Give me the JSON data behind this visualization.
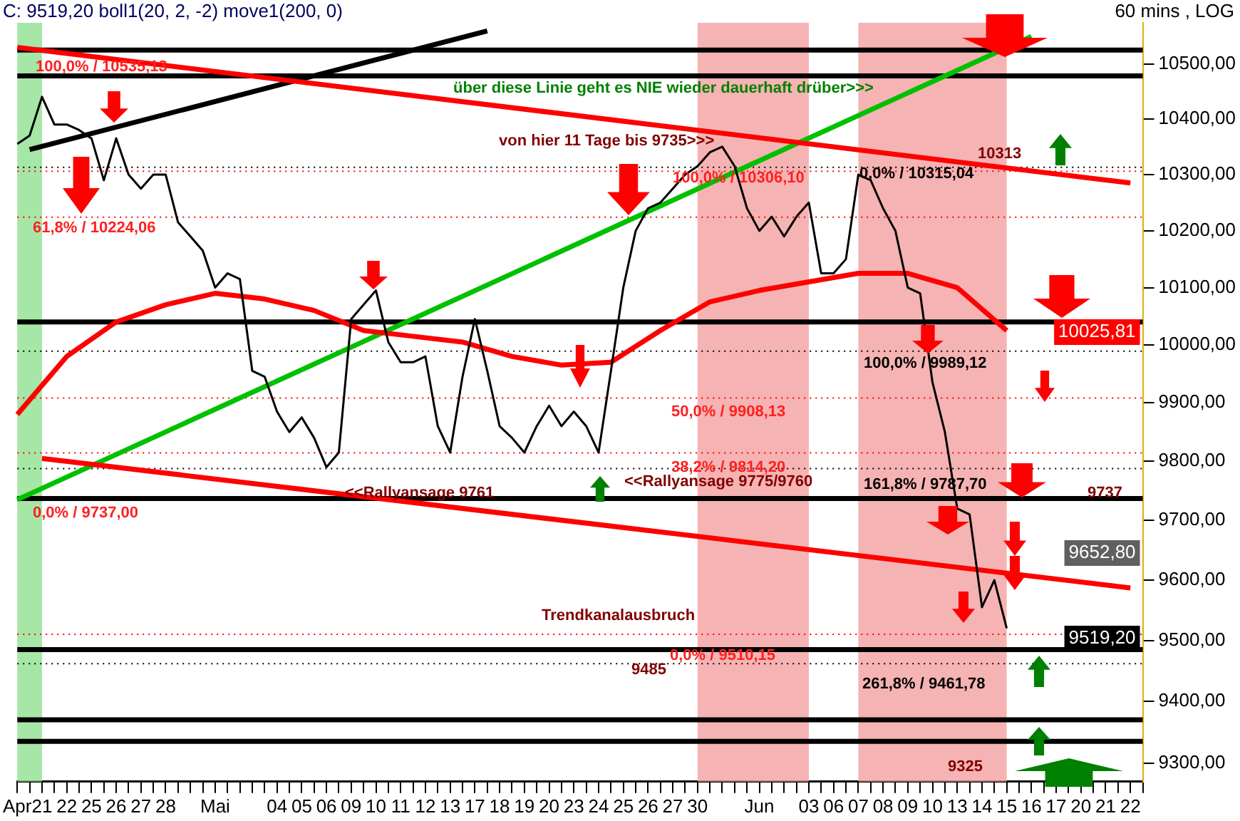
{
  "chart_data": {
    "type": "line",
    "title": "C: 9519,20 boll1(20, 2, -2) move1(200, 0)",
    "subtitle": "60 mins , LOG",
    "categories": [
      "Apr",
      null,
      "21",
      null,
      "22",
      null,
      "25",
      null,
      "26",
      null,
      "27",
      null,
      "28",
      null,
      null,
      null,
      "Mai",
      null,
      null,
      null,
      null,
      "04",
      null,
      "05",
      null,
      "06",
      null,
      "09",
      null,
      "10",
      null,
      "11",
      null,
      "12",
      null,
      "13",
      null,
      "17",
      null,
      "18",
      null,
      "19",
      null,
      "20",
      null,
      "23",
      null,
      "24",
      null,
      "25",
      null,
      "26",
      null,
      "27",
      null,
      "30",
      null,
      null,
      null,
      null,
      "Jun",
      null,
      null,
      null,
      "03",
      null,
      "06",
      null,
      "07",
      null,
      "08",
      null,
      "09",
      null,
      "10",
      null,
      "13",
      null,
      "14",
      null,
      "15",
      null,
      "16",
      null,
      "17",
      null,
      "20",
      null,
      "21",
      null,
      "22",
      null
    ],
    "series": [
      {
        "type": "line",
        "color": "#000000",
        "values": [
          10355,
          10370,
          10440,
          10390,
          10390,
          10380,
          10365,
          10290,
          10365,
          10300,
          10275,
          10300,
          10300,
          10215,
          10190,
          10165,
          10100,
          10125,
          10115,
          9955,
          9945,
          9885,
          9850,
          9875,
          9840,
          9790,
          9815,
          10045,
          10070,
          10095,
          10005,
          9970,
          9970,
          9980,
          9860,
          9815,
          9945,
          10045,
          9955,
          9860,
          9840,
          9815,
          9860,
          9895,
          9860,
          9885,
          9860,
          9815,
          9955,
          10100,
          10200,
          10240,
          10250,
          10275,
          10300,
          10315,
          10340,
          10350,
          10315,
          10240,
          10200,
          10225,
          10190,
          10225,
          10250,
          10125,
          10125,
          10150,
          10300,
          10290,
          10240,
          10200,
          10100,
          10090,
          9935,
          9850,
          9720,
          9710,
          9555,
          9600,
          9520,
          null,
          null,
          null,
          null,
          null,
          null,
          null,
          null,
          null,
          null,
          null
        ]
      },
      {
        "type": "line",
        "color": "#ff0000",
        "values": [
          9880,
          null,
          null,
          null,
          9980,
          null,
          null,
          null,
          10040,
          null,
          null,
          null,
          10070,
          null,
          null,
          null,
          10090,
          null,
          null,
          null,
          10080,
          null,
          null,
          null,
          10060,
          null,
          null,
          null,
          10025,
          null,
          null,
          null,
          10015,
          null,
          null,
          null,
          10005,
          null,
          null,
          null,
          9980,
          null,
          null,
          null,
          9965,
          null,
          null,
          null,
          9970,
          null,
          null,
          null,
          10025,
          null,
          null,
          null,
          10075,
          null,
          null,
          null,
          10095,
          null,
          null,
          null,
          10110,
          null,
          null,
          null,
          10125,
          null,
          null,
          null,
          10125,
          null,
          null,
          null,
          10100,
          null,
          null,
          null,
          10025,
          null,
          null,
          null,
          null,
          null,
          null,
          null,
          null,
          null,
          null,
          null
        ]
      },
      {
        "type": "line",
        "color": "#ff0000",
        "values": [
          10530,
          null,
          null,
          null,
          null,
          null,
          null,
          null,
          null,
          null,
          null,
          null,
          null,
          null,
          null,
          null,
          null,
          null,
          null,
          null,
          null,
          null,
          null,
          null,
          null,
          null,
          null,
          null,
          null,
          null,
          null,
          null,
          null,
          null,
          null,
          null,
          null,
          null,
          null,
          null,
          null,
          null,
          null,
          null,
          null,
          null,
          null,
          null,
          null,
          null,
          null,
          null,
          null,
          null,
          null,
          null,
          null,
          null,
          null,
          null,
          null,
          null,
          null,
          null,
          null,
          null,
          null,
          null,
          null,
          null,
          null,
          null,
          null,
          null,
          null,
          null,
          null,
          null,
          null,
          null,
          null,
          null,
          null,
          null,
          null,
          null,
          null,
          null,
          null,
          null,
          10285,
          null
        ]
      },
      {
        "type": "line",
        "color": "#ff0000",
        "values": [
          null,
          null,
          9805,
          null,
          null,
          null,
          null,
          null,
          null,
          null,
          null,
          null,
          null,
          null,
          null,
          null,
          null,
          null,
          null,
          null,
          null,
          null,
          null,
          null,
          null,
          null,
          null,
          null,
          null,
          null,
          null,
          null,
          null,
          null,
          null,
          null,
          null,
          null,
          null,
          null,
          null,
          null,
          null,
          null,
          null,
          null,
          null,
          null,
          null,
          null,
          null,
          null,
          null,
          null,
          null,
          null,
          null,
          null,
          null,
          null,
          null,
          null,
          null,
          null,
          null,
          null,
          null,
          null,
          null,
          null,
          null,
          null,
          null,
          null,
          null,
          null,
          null,
          null,
          null,
          null,
          null,
          null,
          null,
          null,
          null,
          null,
          null,
          null,
          null,
          null,
          9587,
          null
        ]
      },
      {
        "type": "line",
        "color": "#00c000",
        "values": [
          9735,
          null,
          null,
          null,
          null,
          null,
          null,
          null,
          null,
          null,
          null,
          null,
          null,
          null,
          null,
          null,
          null,
          null,
          null,
          null,
          null,
          null,
          null,
          null,
          null,
          null,
          null,
          null,
          null,
          null,
          null,
          null,
          null,
          null,
          null,
          null,
          null,
          null,
          null,
          null,
          null,
          null,
          null,
          null,
          null,
          null,
          null,
          null,
          null,
          null,
          null,
          null,
          null,
          null,
          null,
          null,
          null,
          null,
          null,
          null,
          null,
          null,
          null,
          null,
          null,
          null,
          null,
          null,
          null,
          null,
          null,
          null,
          null,
          null,
          null,
          null,
          null,
          null,
          null,
          null,
          null,
          null,
          10550,
          null,
          null,
          null,
          null,
          null,
          null,
          null,
          null,
          null
        ]
      },
      {
        "type": "line",
        "color": "#000000",
        "values": [
          null,
          10345,
          null,
          null,
          null,
          null,
          null,
          null,
          null,
          null,
          null,
          null,
          null,
          null,
          null,
          null,
          null,
          null,
          null,
          null,
          null,
          null,
          null,
          null,
          null,
          null,
          null,
          null,
          null,
          null,
          null,
          null,
          null,
          null,
          null,
          null,
          null,
          null,
          10560,
          null,
          null,
          null,
          null,
          null,
          null,
          null,
          null,
          null,
          null,
          null,
          null,
          null,
          null,
          null,
          null,
          null,
          null,
          null,
          null,
          null,
          null,
          null,
          null,
          null,
          null,
          null,
          null,
          null,
          null,
          null,
          null,
          null,
          null,
          null,
          null,
          null,
          null,
          null,
          null,
          null,
          null,
          null,
          null,
          null,
          null,
          null,
          null,
          null,
          null,
          null,
          null,
          null
        ]
      }
    ],
    "log": true,
    "ylim": [
      9270,
      10575
    ],
    "yticks": [
      {
        "value": 9300,
        "label": "9300,00"
      },
      {
        "value": 9400,
        "label": "9400,00"
      },
      {
        "value": 9500,
        "label": "9500,00"
      },
      {
        "value": 9600,
        "label": "9600,00"
      },
      {
        "value": 9700,
        "label": "9700,00"
      },
      {
        "value": 9800,
        "label": "9800,00"
      },
      {
        "value": 9900,
        "label": "9900,00"
      },
      {
        "value": 10000,
        "label": "10000,00"
      },
      {
        "value": 10100,
        "label": "10100,00"
      },
      {
        "value": 10200,
        "label": "10200,00"
      },
      {
        "value": 10300,
        "label": "10300,00"
      },
      {
        "value": 10400,
        "label": "10400,00"
      },
      {
        "value": 10500,
        "label": "10500,00"
      }
    ],
    "grid": false,
    "legend": false,
    "marker": "none",
    "ref_lines": [
      {
        "axis": "y",
        "value": 10525,
        "color": "#000000",
        "line_style": "solid"
      },
      {
        "axis": "y",
        "value": 10478,
        "color": "#000000",
        "line_style": "solid"
      },
      {
        "axis": "y",
        "value": 10040,
        "color": "#000000",
        "line_style": "solid"
      },
      {
        "axis": "y",
        "value": 9737,
        "color": "#000000",
        "line_style": "solid"
      },
      {
        "axis": "y",
        "value": 9485,
        "color": "#000000",
        "line_style": "solid"
      },
      {
        "axis": "y",
        "value": 9370,
        "color": "#000000",
        "line_style": "solid"
      },
      {
        "axis": "y",
        "value": 9335,
        "color": "#000000",
        "line_style": "solid"
      },
      {
        "axis": "y",
        "value": 10224.06,
        "color": "#ff0000",
        "line_style": "dotted"
      },
      {
        "axis": "y",
        "value": 10306.1,
        "color": "#ff0000",
        "line_style": "dotted"
      },
      {
        "axis": "y",
        "value": 9908.13,
        "color": "#ff0000",
        "line_style": "dotted"
      },
      {
        "axis": "y",
        "value": 9814.2,
        "color": "#ff0000",
        "line_style": "dotted"
      },
      {
        "axis": "y",
        "value": 9510.15,
        "color": "#ff0000",
        "line_style": "dotted"
      },
      {
        "axis": "y",
        "value": 10313,
        "color": "#000000",
        "line_style": "dotted"
      },
      {
        "axis": "y",
        "value": 9989.12,
        "color": "#000000",
        "line_style": "dotted"
      },
      {
        "axis": "y",
        "value": 9787.7,
        "color": "#000000",
        "line_style": "dotted"
      },
      {
        "axis": "y",
        "value": 9461.78,
        "color": "#000000",
        "line_style": "dotted"
      }
    ],
    "bands": [
      {
        "axis": "x",
        "from": "Apr",
        "to": "21",
        "color": "#90e090"
      },
      {
        "axis": "x",
        "from": "30",
        "to": "03",
        "color": "#f4a0a0"
      },
      {
        "axis": "x",
        "from": "07",
        "to": "15",
        "color": "#f4a0a0"
      }
    ],
    "annotations": [
      "100,0% / 10535,13",
      "61,8% / 10224,06",
      "0,0% / 9737,00",
      "über diese Linie geht es NIE wieder dauerhaft drüber>>>",
      "von hier 11 Tage bis 9735>>>",
      "100,0% / 10306,10",
      "0,0% / 10315,04",
      "10313",
      "100,0% / 9989,12",
      "50,0% / 9908,13",
      "38,2% / 9814,20",
      "161,8% / 9787,70",
      "9737",
      "<<Rallyansage 9761",
      "<<Rallyansage 9775/9760",
      "Trendkanalausbruch",
      "0,0% / 9510,15",
      "9485",
      "261,8% / 9461,78",
      "9325",
      "10025,81",
      "9652,80",
      "9519,20"
    ]
  }
}
